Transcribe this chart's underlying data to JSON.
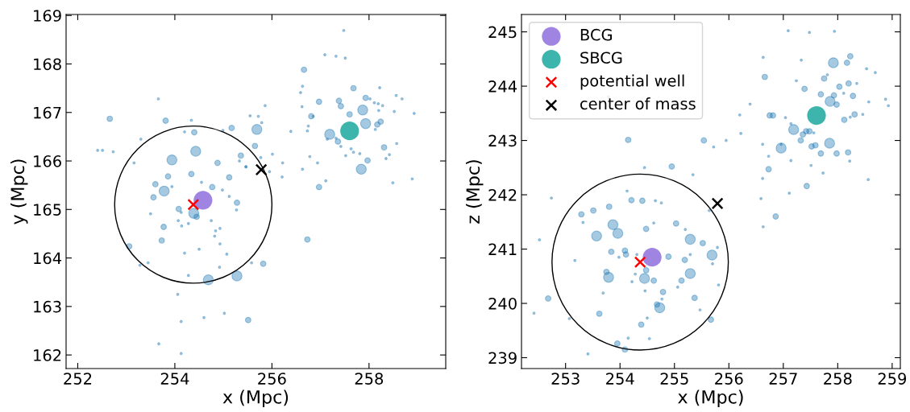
{
  "chart_data": [
    {
      "type": "scatter",
      "xlabel": "x (Mpc)",
      "ylabel": "y (Mpc)",
      "xlim": [
        251.76,
        259.58
      ],
      "ylim": [
        161.72,
        169.02
      ],
      "xticks": [
        252,
        254,
        256,
        258
      ],
      "yticks": [
        162,
        163,
        164,
        165,
        166,
        167,
        168,
        169
      ],
      "grid": false,
      "legend": false,
      "series": [
        {
          "type": "bubble",
          "color": "#1f77b4",
          "marker": "circle",
          "x": [
            252.66,
            253.81,
            254.34,
            253.66,
            252.41,
            252.51,
            252.73,
            253.3,
            253.16,
            254.43,
            254.4,
            254.2,
            253.94,
            254.88,
            253.86,
            253.6,
            253.78,
            253.56,
            253.5,
            253.94,
            254.34,
            254.55,
            254.77,
            255.12,
            254.98,
            255.28,
            255.27,
            254.08,
            254.13,
            254.39,
            254.45,
            254.07,
            253.77,
            254.14,
            254.28,
            254.75,
            254.93,
            254.82,
            254.93,
            253.73,
            253.06,
            254.2,
            254.5,
            255.07,
            253.45,
            253.28,
            254.92,
            255.28,
            254.69,
            254.28,
            254.06,
            254.13,
            253.67,
            254.13,
            254.6,
            255.02,
            255.51,
            255.69,
            255.65,
            254.99,
            255.17,
            255.36,
            255.33,
            255.46,
            255.12,
            254.84,
            255.86,
            255.55,
            255.72,
            255.79,
            255.47,
            255.77,
            255.95,
            256.01,
            256.22,
            256.21,
            255.58,
            255.82,
            256.66,
            256.63,
            257.09,
            257.32,
            257.51,
            257.48,
            256.97,
            257.38,
            257.42,
            257.6,
            257.68,
            257.87,
            257.93,
            258.02,
            258.11,
            258.19,
            258.28,
            258.22,
            258.56,
            258.68,
            258.93,
            258.52,
            258.2,
            258.24,
            258.17,
            257.93,
            258.13,
            257.19,
            257.14,
            257.32,
            257.36,
            257.42,
            257.63,
            257.68,
            257.81,
            257.52,
            257.97,
            257.84,
            258.31,
            258.57,
            258.42,
            258.35,
            258.49,
            258.89,
            256.97,
            257.11,
            256.73,
            256.75,
            256.73,
            256.81,
            256.85,
            256.63,
            256.78,
            256.94,
            256.62,
            256.59,
            256.39
          ],
          "values": [
            166.87,
            166.83,
            166.84,
            167.28,
            166.22,
            166.22,
            166.19,
            166.45,
            165.96,
            166.2,
            166.59,
            166.6,
            166.02,
            165.96,
            165.68,
            165.52,
            165.38,
            165.25,
            164.91,
            165.47,
            165.73,
            165.56,
            165.46,
            165.66,
            165.4,
            165.14,
            164.99,
            165.01,
            164.94,
            164.92,
            164.85,
            164.77,
            164.64,
            164.66,
            164.71,
            164.77,
            164.61,
            164.45,
            164.29,
            164.36,
            164.24,
            164.1,
            164.18,
            164.08,
            163.9,
            163.85,
            163.81,
            163.63,
            163.55,
            163.64,
            163.25,
            162.69,
            162.23,
            162.03,
            162.77,
            162.86,
            162.72,
            166.65,
            166.31,
            166.63,
            166.68,
            166.11,
            166.0,
            165.88,
            165.27,
            164.56,
            167.14,
            166.93,
            166.92,
            166.79,
            165.88,
            166.07,
            165.78,
            166.14,
            165.96,
            165.67,
            163.9,
            163.88,
            167.88,
            167.54,
            168.19,
            168.16,
            168.12,
            168.69,
            167.22,
            167.24,
            167.13,
            166.96,
            167.5,
            167.05,
            167.3,
            167.28,
            167.2,
            167.18,
            167.14,
            167.51,
            167.35,
            167.28,
            166.98,
            167.02,
            167.04,
            166.81,
            166.75,
            166.77,
            166.65,
            166.55,
            166.45,
            166.47,
            166.4,
            166.3,
            166.25,
            166.18,
            166.15,
            166.11,
            166.01,
            165.83,
            166.28,
            166.36,
            166.13,
            166.05,
            165.55,
            165.63,
            165.46,
            165.59,
            164.38,
            166.72,
            166.62,
            166.92,
            166.92,
            165.83,
            166.09,
            165.96,
            167.12,
            167.41,
            166.61
          ],
          "sizes": [
            0.3,
            0.3,
            0.05,
            0.05,
            0.05,
            0.05,
            0.05,
            0.05,
            0.05,
            1,
            0.3,
            0.05,
            1,
            0.3,
            0.3,
            0.3,
            1,
            0.3,
            0.05,
            0.05,
            0.3,
            0.05,
            0.3,
            0.3,
            0.05,
            0.3,
            0.05,
            0.3,
            0.05,
            1,
            0.3,
            0.05,
            0.3,
            0.05,
            0.05,
            0.05,
            0.05,
            0.05,
            0.05,
            0.3,
            0.3,
            0.05,
            0.05,
            0.05,
            0.05,
            0.05,
            0.05,
            1,
            1,
            0.05,
            0.05,
            0.05,
            0.05,
            0.05,
            0.05,
            0.05,
            0.3,
            1,
            0.3,
            0.05,
            0.3,
            0.3,
            0.05,
            0.05,
            0.05,
            0.05,
            0.05,
            0.05,
            0.05,
            0.05,
            0.05,
            0.05,
            0.05,
            0.05,
            0.05,
            0.05,
            0.05,
            0.3,
            0.3,
            0.05,
            0.05,
            0.05,
            0.05,
            0.05,
            0.3,
            0.3,
            0.3,
            0.3,
            0.3,
            1,
            0.3,
            0.05,
            0.05,
            0.05,
            0.05,
            0.05,
            0.05,
            0.05,
            0.05,
            0.05,
            0.05,
            0.3,
            0.3,
            1,
            0.05,
            1,
            0.05,
            0.05,
            0.3,
            0.05,
            0.05,
            0.05,
            0.05,
            0.05,
            0.3,
            1,
            0.3,
            0.05,
            0.05,
            0.05,
            0.05,
            0.05,
            0.3,
            0.05,
            0.3,
            0.05,
            0.05,
            0.3,
            0.05,
            0.05,
            0.05,
            0.05,
            0.05,
            0.05,
            0.05
          ]
        },
        {
          "type": "scatter",
          "color": "#9f84e2",
          "marker": "circle",
          "x": [
            254.58
          ],
          "values": [
            165.19
          ]
        },
        {
          "type": "scatter",
          "color": "#3db5ad",
          "marker": "circle",
          "x": [
            257.6
          ],
          "values": [
            166.62
          ]
        },
        {
          "type": "scatter",
          "color": "#ff0000",
          "marker": "cross",
          "x": [
            254.38
          ],
          "values": [
            165.1
          ]
        },
        {
          "type": "scatter",
          "color": "#000000",
          "marker": "cross",
          "x": [
            255.78
          ],
          "values": [
            165.82
          ]
        }
      ]
    },
    {
      "type": "scatter",
      "xlabel": "x (Mpc)",
      "ylabel": "z (Mpc)",
      "xlim": [
        252.19,
        259.15
      ],
      "ylim": [
        238.8,
        245.32
      ],
      "xticks": [
        253,
        254,
        255,
        256,
        257,
        258,
        259
      ],
      "yticks": [
        239,
        240,
        241,
        242,
        243,
        244,
        245
      ],
      "grid": false,
      "legend": "top left",
      "series": [
        {
          "type": "bubble",
          "color": "#1f77b4",
          "marker": "circle",
          "x": [
            253.79,
            254.15,
            254.45,
            254.95,
            255.34,
            252.74,
            254.13,
            254.21,
            254.41,
            254.65,
            254.76,
            253.8,
            253.51,
            253.29,
            253.32,
            253.87,
            253.96,
            253.57,
            254.48,
            254.62,
            255.03,
            255.2,
            255.29,
            252.52,
            253.17,
            253.84,
            253.98,
            254.09,
            254.11,
            254.31,
            254.89,
            255.19,
            255.29,
            253.75,
            253.79,
            254.28,
            254.45,
            254.48,
            254.62,
            254.22,
            255.13,
            255.29,
            255.06,
            254.79,
            254.46,
            254.77,
            255.37,
            254.68,
            254.73,
            254.39,
            254.5,
            254.54,
            253.95,
            254.09,
            254.15,
            253.62,
            253.07,
            252.68,
            252.42,
            253.69,
            253.41,
            255.69,
            255.52,
            255.79,
            255.7,
            255.67,
            255.81,
            255.47,
            255.64,
            255.54,
            255.72,
            255.95,
            256.63,
            256.66,
            257.09,
            257.48,
            257.94,
            257.33,
            257.92,
            258.17,
            258.23,
            257.75,
            257.81,
            258.69,
            258.53,
            258.03,
            258.2,
            257.24,
            257.39,
            257.69,
            257.93,
            257.86,
            257.98,
            258.11,
            258.28,
            258.35,
            258.57,
            258.88,
            258.93,
            258.31,
            258.23,
            258.12,
            258.46,
            256.75,
            256.81,
            257.04,
            257.19,
            257.36,
            257.42,
            257.48,
            257.56,
            257.32,
            256.96,
            256.96,
            257.52,
            257.59,
            257.85,
            257.69,
            257.98,
            258.19,
            258.22,
            257.51,
            257.73,
            257.14,
            257.14,
            256.73,
            256.73,
            256.62,
            256.62,
            257.43,
            257.11,
            258.56,
            256.86,
            256.59,
            256.63,
            256.22,
            256.39,
            256.2
          ],
          "values": [
            243.8,
            243.01,
            242.5,
            242.52,
            242.37,
            241.94,
            242.07,
            241.9,
            241.89,
            241.89,
            241.85,
            241.78,
            241.71,
            241.64,
            241.49,
            241.45,
            241.29,
            241.24,
            241.37,
            241.48,
            241.47,
            241.36,
            241.18,
            241.17,
            240.79,
            240.95,
            240.85,
            240.97,
            240.9,
            240.9,
            240.86,
            240.8,
            240.9,
            240.58,
            240.48,
            240.54,
            240.46,
            240.61,
            240.42,
            240.4,
            240.42,
            240.55,
            240.3,
            240.21,
            240.23,
            240.08,
            240.1,
            239.98,
            239.92,
            239.61,
            239.73,
            239.35,
            239.26,
            239.15,
            239.36,
            239.81,
            239.72,
            240.09,
            239.82,
            240.19,
            239.07,
            240.89,
            241.11,
            241.03,
            240.73,
            239.7,
            240.34,
            239.88,
            241.71,
            243.0,
            242.88,
            243.0,
            244.53,
            244.17,
            245.02,
            244.99,
            245.01,
            244.48,
            244.43,
            244.43,
            244.55,
            244.14,
            244.21,
            244.25,
            244.32,
            243.99,
            244.05,
            244.1,
            243.95,
            243.85,
            243.83,
            243.72,
            243.66,
            243.87,
            243.82,
            244.05,
            243.71,
            243.76,
            243.64,
            243.48,
            243.43,
            243.38,
            243.48,
            243.46,
            243.46,
            243.42,
            243.2,
            243.11,
            243.17,
            243.17,
            243.14,
            243.0,
            242.86,
            242.93,
            242.89,
            242.91,
            242.95,
            242.76,
            242.76,
            242.78,
            242.62,
            242.54,
            242.4,
            243.31,
            242.63,
            242.47,
            242.71,
            242.93,
            242.3,
            242.16,
            242.03,
            242.28,
            241.6,
            241.93,
            241.41,
            243.13,
            243.67,
            243.47
          ],
          "sizes": [
            0.05,
            0.3,
            0.05,
            0.3,
            0.05,
            0.05,
            0.05,
            0.3,
            0.3,
            0.05,
            0.05,
            0.3,
            0.3,
            0.3,
            0.05,
            1,
            1,
            1,
            0.3,
            0.05,
            0.3,
            0.05,
            1,
            0.05,
            0.05,
            0.3,
            0.05,
            0.3,
            0.3,
            0.05,
            0.3,
            0.3,
            0.05,
            0.3,
            1,
            0.05,
            1,
            0.3,
            0.3,
            0.05,
            0.3,
            1,
            0.05,
            0.3,
            0.05,
            0.05,
            0.3,
            0.3,
            1,
            0.3,
            0.05,
            0.05,
            0.3,
            0.3,
            0.05,
            0.3,
            0.05,
            0.3,
            0.05,
            0.05,
            0.05,
            1,
            0.3,
            0.05,
            0.05,
            0.3,
            0.05,
            0.05,
            0.05,
            0.3,
            0.05,
            0.05,
            0.05,
            0.3,
            0.05,
            0.05,
            0.05,
            0.05,
            1,
            0.3,
            0.3,
            0.3,
            0.05,
            0.05,
            0.05,
            0.3,
            0.3,
            0.05,
            0.3,
            0.3,
            0.3,
            1,
            0.3,
            0.05,
            0.3,
            0.05,
            0.05,
            0.05,
            0.05,
            0.3,
            0.05,
            0.3,
            0.05,
            0.3,
            0.3,
            0.05,
            1,
            0.3,
            0.3,
            0.3,
            0.05,
            0.3,
            1,
            0.05,
            0.3,
            0.3,
            1,
            0.3,
            0.3,
            0.3,
            0.05,
            0.05,
            0.05,
            0.05,
            0.05,
            0.3,
            0.05,
            0.05,
            0.05,
            0.3,
            0.05,
            0.05,
            0.3,
            0.05,
            0.05,
            0.05,
            0.05,
            0.05
          ]
        },
        {
          "type": "scatter",
          "name": "BCG",
          "color": "#9f84e2",
          "marker": "circle",
          "x": [
            254.59
          ],
          "values": [
            240.85
          ]
        },
        {
          "type": "scatter",
          "name": "SBCG",
          "color": "#3db5ad",
          "marker": "circle",
          "x": [
            257.61
          ],
          "values": [
            243.46
          ]
        },
        {
          "type": "scatter",
          "name": "potential well",
          "color": "#ff0000",
          "marker": "cross",
          "x": [
            254.37
          ],
          "values": [
            240.76
          ]
        },
        {
          "type": "scatter",
          "name": "center of mass",
          "color": "#000000",
          "marker": "cross",
          "x": [
            255.79
          ],
          "values": [
            241.84
          ]
        }
      ]
    }
  ]
}
